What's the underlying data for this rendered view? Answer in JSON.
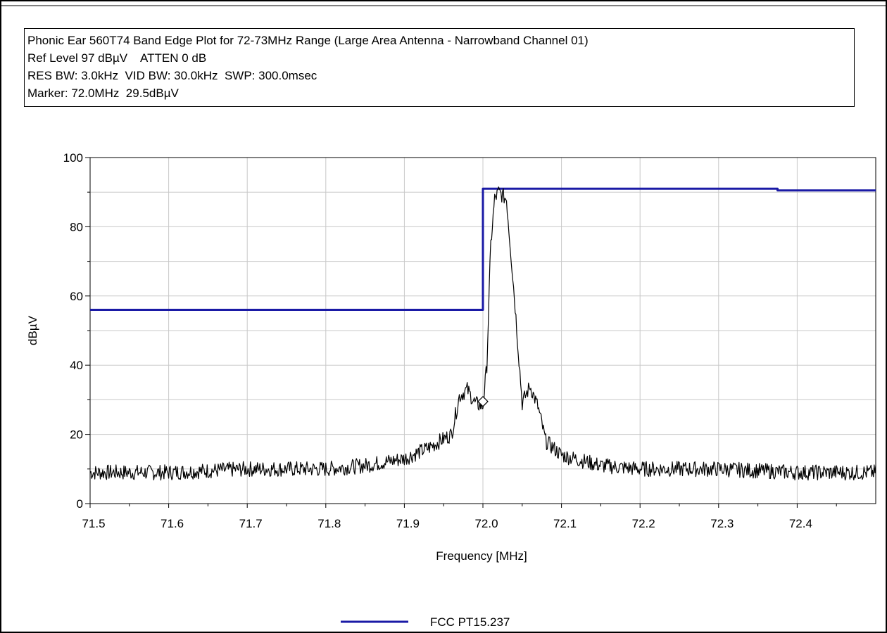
{
  "info": {
    "line1": "Phonic Ear 560T74 Band Edge Plot for 72-73MHz Range (Large Area Antenna - Narrowband Channel 01)",
    "line2": "Ref Level 97 dBµV    ATTEN 0 dB",
    "line3": "RES BW: 3.0kHz  VID BW: 30.0kHz  SWP: 300.0msec",
    "line4": "Marker: 72.0MHz  29.5dBµV"
  },
  "chart_data": {
    "type": "line",
    "xlabel": "Frequency [MHz]",
    "ylabel": "dBµV",
    "xlim": [
      71.5,
      72.5
    ],
    "ylim": [
      0,
      100
    ],
    "x_ticks": [
      "71.5",
      "71.6",
      "71.7",
      "71.8",
      "71.9",
      "72.0",
      "72.1",
      "72.2",
      "72.3",
      "72.4"
    ],
    "y_ticks": [
      "0",
      "20",
      "40",
      "60",
      "80",
      "100"
    ],
    "grid": true,
    "legend_position": "bottom",
    "marker": {
      "x": 72.0,
      "y": 29.5
    },
    "series": [
      {
        "name": "FCC PT15.237",
        "color": "#1a1aa6",
        "in_legend": true,
        "x": [
          71.5,
          72.0,
          72.0,
          72.375,
          72.375,
          72.5
        ],
        "y": [
          56,
          56,
          91,
          91,
          90.5,
          90.5
        ]
      },
      {
        "name": "",
        "color": "#000000",
        "in_legend": false,
        "noisy": true,
        "x": [
          71.5,
          71.6,
          71.7,
          71.8,
          71.85,
          71.9,
          71.93,
          71.96,
          71.97,
          71.98,
          71.99,
          72.0,
          72.005,
          72.01,
          72.015,
          72.02,
          72.03,
          72.04,
          72.05,
          72.06,
          72.07,
          72.08,
          72.1,
          72.15,
          72.2,
          72.3,
          72.4,
          72.5
        ],
        "y": [
          9,
          9,
          10,
          10,
          11,
          13,
          16,
          20,
          31,
          33,
          29,
          28,
          40,
          75,
          88,
          90,
          88,
          60,
          29,
          34,
          28,
          18,
          14,
          11,
          10,
          10,
          9,
          9
        ]
      }
    ]
  }
}
